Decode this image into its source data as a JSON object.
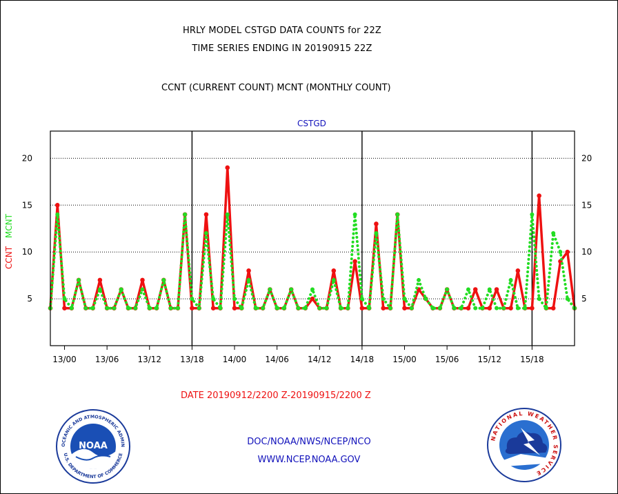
{
  "header": {
    "title_line1": "HRLY MODEL CSTGD DATA COUNTS for 22Z",
    "title_line2": "TIME SERIES ENDING IN 20190915 22Z",
    "subtitle": "CCNT (CURRENT COUNT) MCNT (MONTHLY COUNT)"
  },
  "chart_data": {
    "type": "line",
    "title": "CSTGD",
    "ylabel_ccnt": "CCNT",
    "ylabel_mcnt": "MCNT",
    "xlabel": "DATE 20190912/2200 Z-20190915/2200 Z",
    "ylim": [
      0,
      22.9
    ],
    "yticks": [
      5,
      10,
      15,
      20
    ],
    "xticks": [
      {
        "hour": 2,
        "label": "13/00"
      },
      {
        "hour": 8,
        "label": "13/06"
      },
      {
        "hour": 14,
        "label": "13/12"
      },
      {
        "hour": 20,
        "label": "13/18"
      },
      {
        "hour": 26,
        "label": "14/00"
      },
      {
        "hour": 32,
        "label": "14/06"
      },
      {
        "hour": 38,
        "label": "14/12"
      },
      {
        "hour": 44,
        "label": "14/18"
      },
      {
        "hour": 50,
        "label": "15/00"
      },
      {
        "hour": 56,
        "label": "15/06"
      },
      {
        "hour": 62,
        "label": "15/12"
      },
      {
        "hour": 68,
        "label": "15/18"
      }
    ],
    "day_boundaries_hour": [
      20,
      44,
      68
    ],
    "grid": "horizontal dotted",
    "series": [
      {
        "name": "CCNT",
        "color": "#ee1111",
        "style": "solid",
        "values": [
          4,
          15,
          4,
          4,
          7,
          4,
          4,
          7,
          4,
          4,
          6,
          4,
          4,
          7,
          4,
          4,
          7,
          4,
          4,
          14,
          4,
          4,
          14,
          4,
          4,
          19,
          4,
          4,
          8,
          4,
          4,
          6,
          4,
          4,
          6,
          4,
          4,
          5,
          4,
          4,
          8,
          4,
          4,
          9,
          4,
          4,
          13,
          4,
          4,
          14,
          4,
          4,
          6,
          5,
          4,
          4,
          6,
          4,
          4,
          4,
          6,
          4,
          4,
          6,
          4,
          4,
          8,
          4,
          4,
          16,
          4,
          4,
          9,
          10,
          4
        ]
      },
      {
        "name": "MCNT",
        "color": "#22dd22",
        "style": "dotted",
        "values": [
          4,
          14,
          5,
          4,
          7,
          4,
          4,
          6,
          4,
          4,
          6,
          4,
          4,
          6,
          4,
          4,
          7,
          4,
          4,
          14,
          5,
          4,
          12,
          5,
          4,
          14,
          5,
          4,
          7,
          4,
          4,
          6,
          4,
          4,
          6,
          4,
          4,
          6,
          4,
          4,
          7,
          4,
          4,
          14,
          5,
          4,
          12,
          5,
          4,
          14,
          5,
          4,
          7,
          5,
          4,
          4,
          6,
          4,
          4,
          6,
          4,
          4,
          6,
          4,
          4,
          7,
          4,
          4,
          14,
          5,
          4,
          12,
          10,
          5,
          4
        ]
      }
    ]
  },
  "footer": {
    "org_line": "DOC/NOAA/NWS/NCEP/NCO",
    "url_line": "WWW.NCEP.NOAA.GOV",
    "noaa_logo_text": "NOAA",
    "noaa_ring_text": "NATIONAL OCEANIC AND ATMOSPHERIC ADMINISTRATION",
    "noaa_ring_text_bottom": "U.S. DEPARTMENT OF COMMERCE",
    "nws_ring_text": "NATIONAL WEATHER SERVICE"
  }
}
